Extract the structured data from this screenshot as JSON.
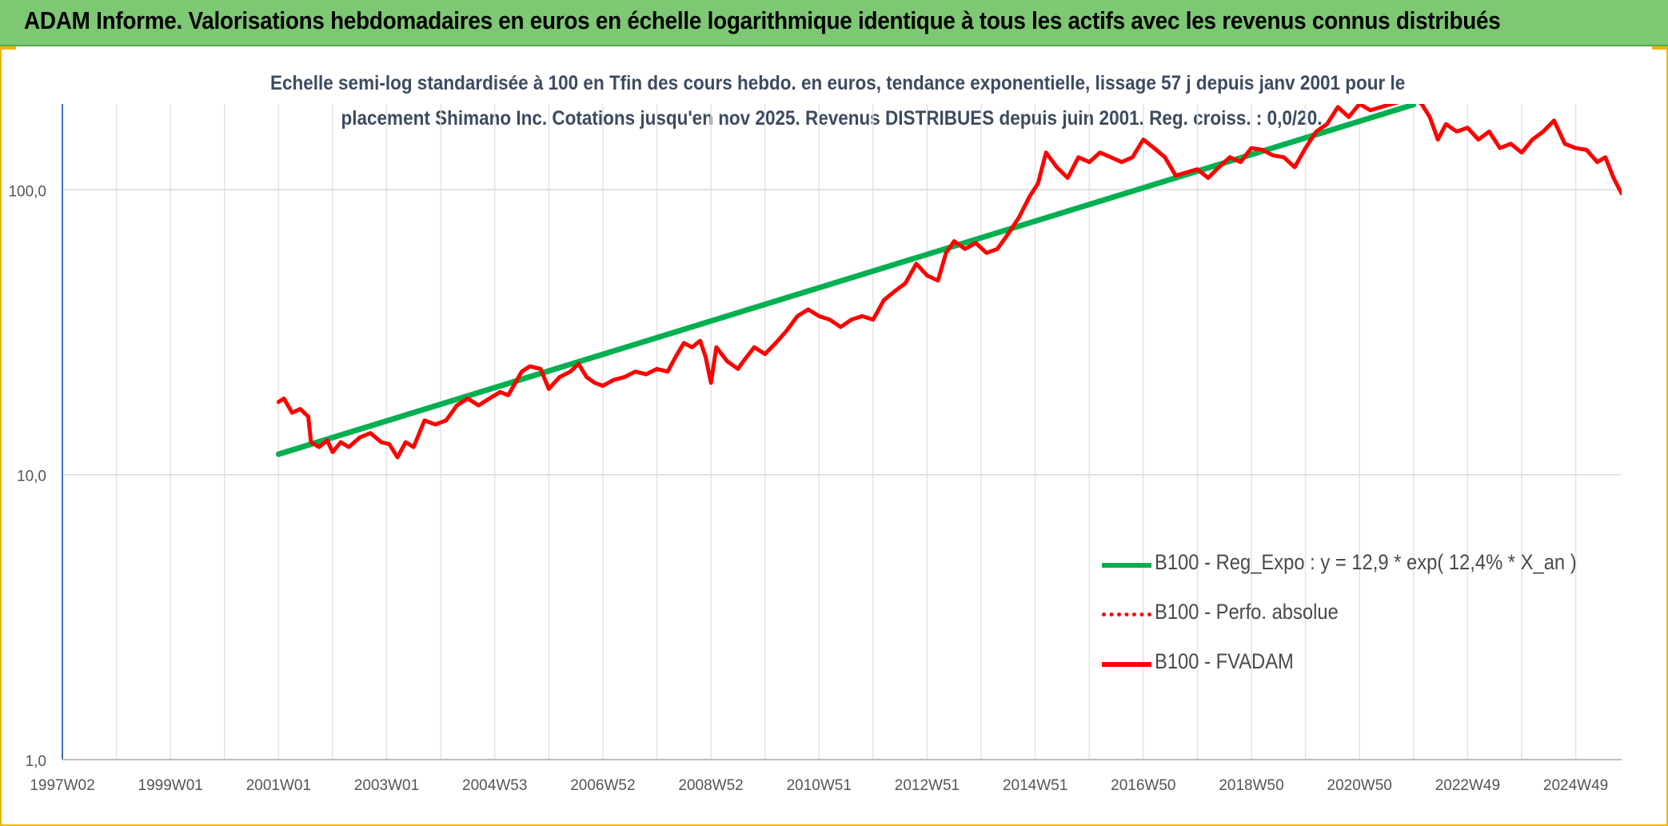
{
  "header": {
    "title": "ADAM Informe. Valorisations hebdomadaires en euros en échelle logarithmique identique à tous les actifs avec les revenus connus distribués"
  },
  "chart_data": {
    "type": "line",
    "title_line1": "Echelle semi-log standardisée à 100 en Tfin des cours hebdo. en euros, tendance exponentielle, lissage 57 j depuis janv 2001 pour le",
    "title_line2": "placement Shimano Inc. Cotations jusqu'en nov 2025. Revenus DISTRIBUES depuis juin 2001. Reg. croiss. : 0,0/20.",
    "xlabel": "",
    "ylabel": "",
    "y_scale": "log",
    "ylim": [
      1,
      200
    ],
    "y_ticks": [
      "1,0",
      "10,0",
      "100,0"
    ],
    "y_tick_values": [
      1,
      10,
      100
    ],
    "x_range": [
      1997.0,
      2025.85
    ],
    "x_ticks": [
      "1997W02",
      "1999W01",
      "2001W01",
      "2003W01",
      "2004W53",
      "2006W52",
      "2008W52",
      "2010W51",
      "2012W51",
      "2014W51",
      "2016W50",
      "2018W50",
      "2020W50",
      "2022W49",
      "2024W49"
    ],
    "x_tick_values": [
      1997.0,
      1999.0,
      2001.0,
      2003.0,
      2005.0,
      2007.0,
      2009.0,
      2011.0,
      2013.0,
      2015.0,
      2017.0,
      2019.0,
      2021.0,
      2023.0,
      2025.0
    ],
    "grid": true,
    "legend_position": "bottom-right",
    "series": [
      {
        "name": "B100 - Reg_Expo : y = 12,9 * exp( 12,4% *  X_an )",
        "color": "#00b050",
        "style": "solid",
        "x": [
          2001.0,
          2022.0
        ],
        "y": [
          11.8,
          199
        ]
      },
      {
        "name": "B100 - Perfo. absolue",
        "color": "#ff0000",
        "style": "dotted",
        "x": [],
        "y": []
      },
      {
        "name": "B100 - FVADAM",
        "color": "#ff0000",
        "style": "solid",
        "x": [
          2001.0,
          2001.1,
          2001.25,
          2001.4,
          2001.55,
          2001.6,
          2001.75,
          2001.9,
          2002.0,
          2002.15,
          2002.3,
          2002.5,
          2002.7,
          2002.9,
          2003.05,
          2003.2,
          2003.35,
          2003.5,
          2003.7,
          2003.9,
          2004.1,
          2004.3,
          2004.5,
          2004.7,
          2004.9,
          2005.1,
          2005.25,
          2005.5,
          2005.65,
          2005.85,
          2006.0,
          2006.2,
          2006.4,
          2006.55,
          2006.7,
          2006.85,
          2007.0,
          2007.2,
          2007.4,
          2007.6,
          2007.8,
          2008.0,
          2008.2,
          2008.35,
          2008.5,
          2008.65,
          2008.8,
          2008.9,
          2009.0,
          2009.1,
          2009.3,
          2009.5,
          2009.6,
          2009.8,
          2010.0,
          2010.2,
          2010.4,
          2010.6,
          2010.8,
          2011.0,
          2011.2,
          2011.4,
          2011.6,
          2011.8,
          2012.0,
          2012.2,
          2012.4,
          2012.6,
          2012.8,
          2013.0,
          2013.2,
          2013.35,
          2013.5,
          2013.7,
          2013.9,
          2014.1,
          2014.3,
          2014.5,
          2014.7,
          2014.9,
          2015.05,
          2015.2,
          2015.4,
          2015.6,
          2015.8,
          2016.0,
          2016.2,
          2016.4,
          2016.6,
          2016.8,
          2017.0,
          2017.2,
          2017.4,
          2017.6,
          2017.8,
          2018.0,
          2018.2,
          2018.4,
          2018.6,
          2018.8,
          2019.0,
          2019.2,
          2019.4,
          2019.6,
          2019.8,
          2020.0,
          2020.2,
          2020.4,
          2020.6,
          2020.8,
          2021.0,
          2021.2,
          2021.4,
          2021.6,
          2021.8,
          2022.0,
          2022.15,
          2022.3,
          2022.45,
          2022.6,
          2022.8,
          2023.0,
          2023.2,
          2023.4,
          2023.6,
          2023.8,
          2024.0,
          2024.2,
          2024.4,
          2024.6,
          2024.8,
          2025.0,
          2025.2,
          2025.4,
          2025.55,
          2025.7,
          2025.85
        ],
        "y": [
          18.0,
          18.5,
          16.5,
          17.0,
          16.0,
          13.0,
          12.5,
          13.2,
          12.0,
          13.0,
          12.5,
          13.5,
          14.0,
          13.0,
          12.8,
          11.5,
          13.0,
          12.5,
          15.5,
          15.0,
          15.5,
          17.5,
          18.5,
          17.5,
          18.5,
          19.5,
          19.0,
          23.0,
          24.0,
          23.5,
          20.0,
          22.0,
          23.0,
          24.5,
          22.0,
          21.0,
          20.5,
          21.5,
          22.0,
          23.0,
          22.5,
          23.5,
          23.0,
          26.0,
          29.0,
          28.0,
          29.5,
          26.0,
          21.0,
          28.0,
          25.0,
          23.5,
          25.0,
          28.0,
          26.5,
          29.0,
          32.0,
          36.0,
          38.0,
          36.0,
          35.0,
          33.0,
          35.0,
          36.0,
          35.0,
          41.0,
          44.0,
          47.0,
          55.0,
          50.0,
          48.0,
          60.0,
          66.0,
          62.0,
          65.0,
          60.0,
          62.0,
          70.0,
          80.0,
          95.0,
          105.0,
          135.0,
          120.0,
          110.0,
          130.0,
          125.0,
          135.0,
          130.0,
          125.0,
          130.0,
          150.0,
          140.0,
          130.0,
          112.0,
          115.0,
          118.0,
          110.0,
          120.0,
          130.0,
          125.0,
          140.0,
          138.0,
          132.0,
          130.0,
          120.0,
          140.0,
          160.0,
          170.0,
          195.0,
          180.0,
          200.0,
          190.0,
          195.0,
          200.0,
          205.0,
          210.0,
          200.0,
          180.0,
          150.0,
          170.0,
          160.0,
          165.0,
          150.0,
          160.0,
          140.0,
          145.0,
          135.0,
          150.0,
          160.0,
          175.0,
          145.0,
          140.0,
          138.0,
          125.0,
          130.0,
          110.0,
          97.0
        ]
      }
    ]
  }
}
